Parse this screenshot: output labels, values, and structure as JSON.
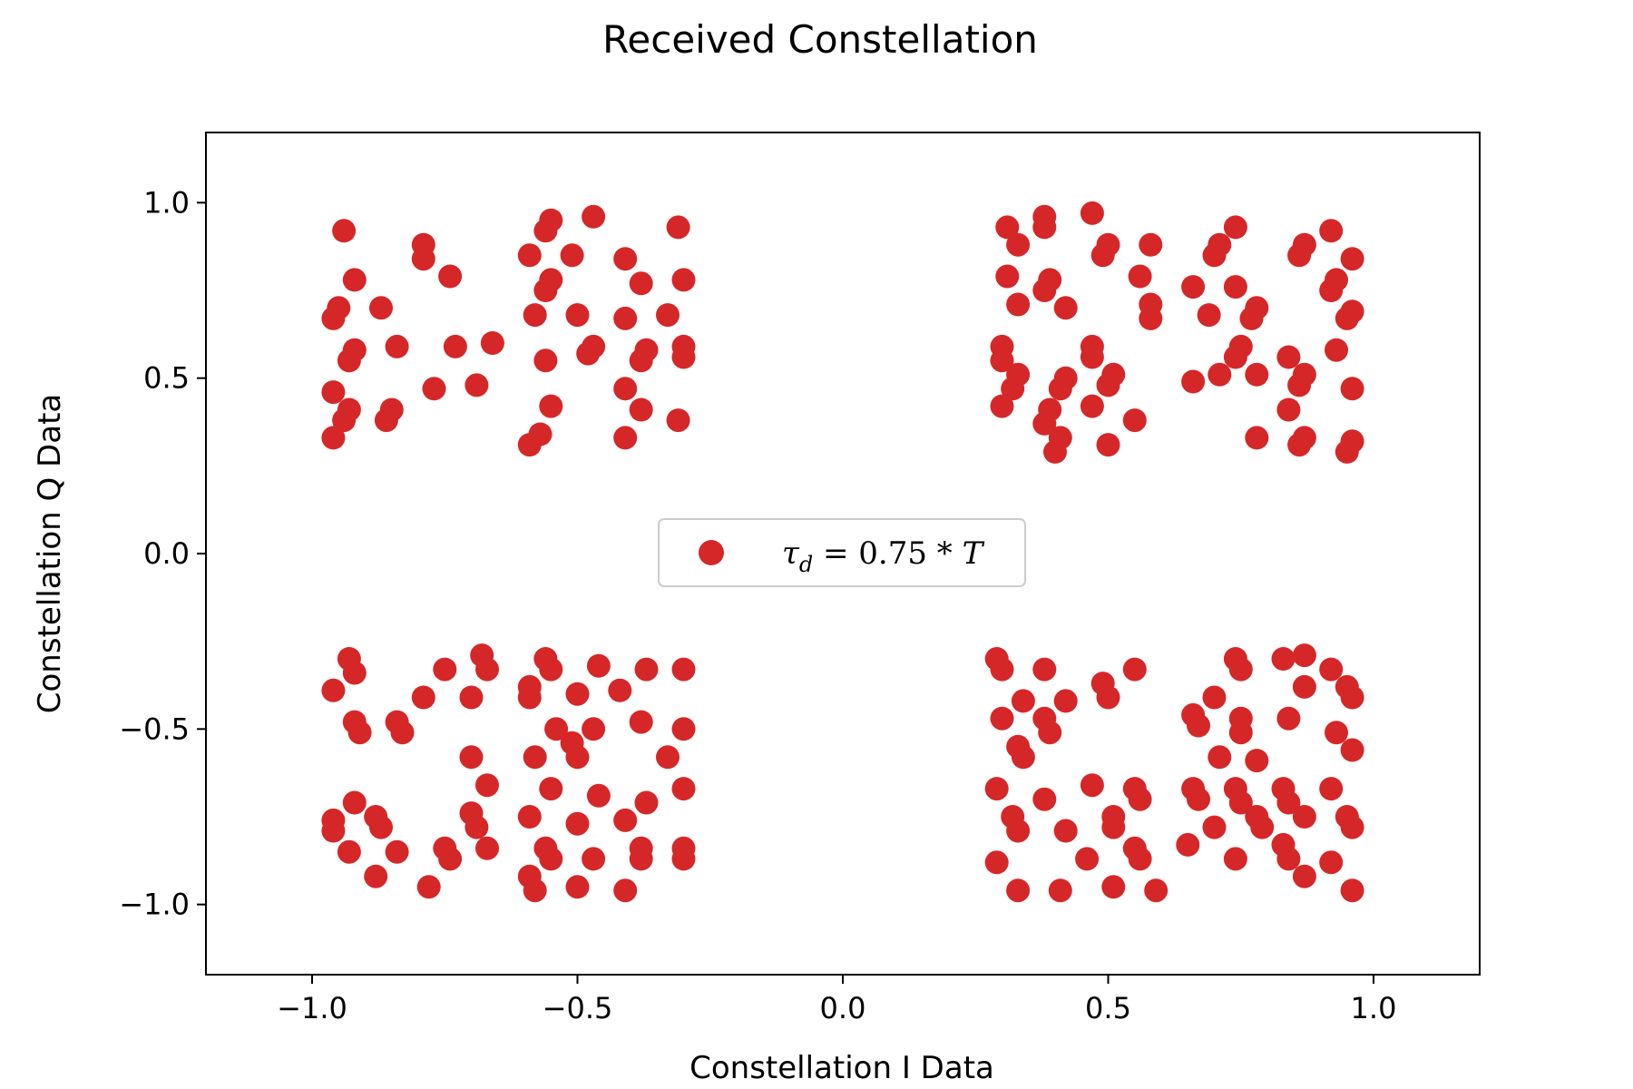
{
  "chart_data": {
    "type": "scatter",
    "title": "Received Constellation",
    "xlabel": "Constellation I Data",
    "ylabel": "Constellation Q Data",
    "xlim": [
      -1.2,
      1.2
    ],
    "ylim": [
      -1.2,
      1.2
    ],
    "xticks": [
      -1.0,
      -0.5,
      0.0,
      0.5,
      1.0
    ],
    "yticks": [
      -1.0,
      -0.5,
      0.0,
      0.5,
      1.0
    ],
    "xtick_labels": [
      "−1.0",
      "−0.5",
      "0.0",
      "0.5",
      "1.0"
    ],
    "ytick_labels": [
      "−1.0",
      "−0.5",
      "0.0",
      "0.5",
      "1.0"
    ],
    "grid": false,
    "legend_position": "center",
    "series": [
      {
        "legend_label": "τ_d = 0.75 * T",
        "color": "#d62728",
        "points": [
          [
            -0.94,
            0.92
          ],
          [
            -0.92,
            0.78
          ],
          [
            -0.95,
            0.7
          ],
          [
            -0.96,
            0.67
          ],
          [
            -0.87,
            0.7
          ],
          [
            -0.79,
            0.88
          ],
          [
            -0.79,
            0.84
          ],
          [
            -0.74,
            0.79
          ],
          [
            -0.92,
            0.58
          ],
          [
            -0.93,
            0.55
          ],
          [
            -0.84,
            0.59
          ],
          [
            -0.73,
            0.59
          ],
          [
            -0.66,
            0.6
          ],
          [
            -0.96,
            0.46
          ],
          [
            -0.77,
            0.47
          ],
          [
            -0.69,
            0.48
          ],
          [
            -0.93,
            0.41
          ],
          [
            -0.94,
            0.38
          ],
          [
            -0.85,
            0.41
          ],
          [
            -0.86,
            0.38
          ],
          [
            -0.96,
            0.33
          ],
          [
            -0.55,
            0.95
          ],
          [
            -0.56,
            0.92
          ],
          [
            -0.47,
            0.96
          ],
          [
            -0.59,
            0.85
          ],
          [
            -0.51,
            0.85
          ],
          [
            -0.41,
            0.84
          ],
          [
            -0.31,
            0.93
          ],
          [
            -0.55,
            0.78
          ],
          [
            -0.56,
            0.75
          ],
          [
            -0.38,
            0.77
          ],
          [
            -0.3,
            0.78
          ],
          [
            -0.58,
            0.68
          ],
          [
            -0.5,
            0.68
          ],
          [
            -0.41,
            0.67
          ],
          [
            -0.33,
            0.68
          ],
          [
            -0.47,
            0.59
          ],
          [
            -0.48,
            0.57
          ],
          [
            -0.37,
            0.58
          ],
          [
            -0.38,
            0.55
          ],
          [
            -0.3,
            0.59
          ],
          [
            -0.3,
            0.56
          ],
          [
            -0.56,
            0.55
          ],
          [
            -0.41,
            0.47
          ],
          [
            -0.55,
            0.42
          ],
          [
            -0.38,
            0.41
          ],
          [
            -0.31,
            0.38
          ],
          [
            -0.57,
            0.34
          ],
          [
            -0.59,
            0.31
          ],
          [
            -0.41,
            0.33
          ],
          [
            0.47,
            0.97
          ],
          [
            0.38,
            0.96
          ],
          [
            0.38,
            0.93
          ],
          [
            0.31,
            0.93
          ],
          [
            0.33,
            0.88
          ],
          [
            0.5,
            0.88
          ],
          [
            0.49,
            0.85
          ],
          [
            0.58,
            0.88
          ],
          [
            0.31,
            0.79
          ],
          [
            0.39,
            0.78
          ],
          [
            0.38,
            0.75
          ],
          [
            0.56,
            0.79
          ],
          [
            0.33,
            0.71
          ],
          [
            0.42,
            0.7
          ],
          [
            0.58,
            0.71
          ],
          [
            0.58,
            0.67
          ],
          [
            0.3,
            0.59
          ],
          [
            0.3,
            0.55
          ],
          [
            0.47,
            0.59
          ],
          [
            0.47,
            0.56
          ],
          [
            0.33,
            0.51
          ],
          [
            0.42,
            0.5
          ],
          [
            0.51,
            0.51
          ],
          [
            0.32,
            0.47
          ],
          [
            0.41,
            0.47
          ],
          [
            0.5,
            0.48
          ],
          [
            0.3,
            0.42
          ],
          [
            0.39,
            0.41
          ],
          [
            0.47,
            0.42
          ],
          [
            0.38,
            0.37
          ],
          [
            0.55,
            0.38
          ],
          [
            0.41,
            0.33
          ],
          [
            0.4,
            0.29
          ],
          [
            0.5,
            0.31
          ],
          [
            0.74,
            0.93
          ],
          [
            0.92,
            0.92
          ],
          [
            0.71,
            0.88
          ],
          [
            0.7,
            0.85
          ],
          [
            0.87,
            0.88
          ],
          [
            0.86,
            0.85
          ],
          [
            0.96,
            0.84
          ],
          [
            0.66,
            0.76
          ],
          [
            0.74,
            0.76
          ],
          [
            0.93,
            0.78
          ],
          [
            0.92,
            0.75
          ],
          [
            0.69,
            0.68
          ],
          [
            0.78,
            0.7
          ],
          [
            0.77,
            0.67
          ],
          [
            0.96,
            0.69
          ],
          [
            0.95,
            0.67
          ],
          [
            0.75,
            0.59
          ],
          [
            0.74,
            0.56
          ],
          [
            0.84,
            0.56
          ],
          [
            0.93,
            0.58
          ],
          [
            0.71,
            0.51
          ],
          [
            0.78,
            0.51
          ],
          [
            0.87,
            0.51
          ],
          [
            0.86,
            0.48
          ],
          [
            0.66,
            0.49
          ],
          [
            0.96,
            0.47
          ],
          [
            0.84,
            0.41
          ],
          [
            0.78,
            0.33
          ],
          [
            0.87,
            0.33
          ],
          [
            0.86,
            0.31
          ],
          [
            0.96,
            0.32
          ],
          [
            0.95,
            0.29
          ],
          [
            -0.93,
            -0.3
          ],
          [
            -0.92,
            -0.34
          ],
          [
            -0.96,
            -0.39
          ],
          [
            -0.75,
            -0.33
          ],
          [
            -0.68,
            -0.29
          ],
          [
            -0.67,
            -0.33
          ],
          [
            -0.79,
            -0.41
          ],
          [
            -0.7,
            -0.41
          ],
          [
            -0.92,
            -0.48
          ],
          [
            -0.91,
            -0.51
          ],
          [
            -0.84,
            -0.48
          ],
          [
            -0.83,
            -0.51
          ],
          [
            -0.7,
            -0.58
          ],
          [
            -0.67,
            -0.66
          ],
          [
            -0.92,
            -0.71
          ],
          [
            -0.88,
            -0.75
          ],
          [
            -0.96,
            -0.76
          ],
          [
            -0.96,
            -0.79
          ],
          [
            -0.87,
            -0.78
          ],
          [
            -0.7,
            -0.74
          ],
          [
            -0.69,
            -0.78
          ],
          [
            -0.75,
            -0.84
          ],
          [
            -0.74,
            -0.87
          ],
          [
            -0.67,
            -0.84
          ],
          [
            -0.93,
            -0.85
          ],
          [
            -0.84,
            -0.85
          ],
          [
            -0.88,
            -0.92
          ],
          [
            -0.78,
            -0.95
          ],
          [
            -0.56,
            -0.3
          ],
          [
            -0.55,
            -0.33
          ],
          [
            -0.46,
            -0.32
          ],
          [
            -0.37,
            -0.33
          ],
          [
            -0.3,
            -0.33
          ],
          [
            -0.59,
            -0.38
          ],
          [
            -0.59,
            -0.41
          ],
          [
            -0.5,
            -0.4
          ],
          [
            -0.42,
            -0.39
          ],
          [
            -0.54,
            -0.5
          ],
          [
            -0.47,
            -0.5
          ],
          [
            -0.38,
            -0.48
          ],
          [
            -0.3,
            -0.5
          ],
          [
            -0.51,
            -0.54
          ],
          [
            -0.5,
            -0.58
          ],
          [
            -0.58,
            -0.58
          ],
          [
            -0.33,
            -0.58
          ],
          [
            -0.55,
            -0.67
          ],
          [
            -0.46,
            -0.69
          ],
          [
            -0.3,
            -0.67
          ],
          [
            -0.37,
            -0.71
          ],
          [
            -0.59,
            -0.75
          ],
          [
            -0.5,
            -0.77
          ],
          [
            -0.41,
            -0.76
          ],
          [
            -0.56,
            -0.84
          ],
          [
            -0.55,
            -0.87
          ],
          [
            -0.47,
            -0.87
          ],
          [
            -0.38,
            -0.84
          ],
          [
            -0.38,
            -0.87
          ],
          [
            -0.3,
            -0.84
          ],
          [
            -0.3,
            -0.87
          ],
          [
            -0.59,
            -0.92
          ],
          [
            -0.58,
            -0.96
          ],
          [
            -0.5,
            -0.95
          ],
          [
            -0.41,
            -0.96
          ],
          [
            0.29,
            -0.3
          ],
          [
            0.3,
            -0.33
          ],
          [
            0.38,
            -0.33
          ],
          [
            0.49,
            -0.37
          ],
          [
            0.5,
            -0.41
          ],
          [
            0.55,
            -0.33
          ],
          [
            0.34,
            -0.42
          ],
          [
            0.42,
            -0.42
          ],
          [
            0.3,
            -0.47
          ],
          [
            0.38,
            -0.47
          ],
          [
            0.39,
            -0.51
          ],
          [
            0.33,
            -0.55
          ],
          [
            0.34,
            -0.58
          ],
          [
            0.29,
            -0.67
          ],
          [
            0.38,
            -0.7
          ],
          [
            0.47,
            -0.66
          ],
          [
            0.55,
            -0.67
          ],
          [
            0.56,
            -0.7
          ],
          [
            0.32,
            -0.75
          ],
          [
            0.33,
            -0.79
          ],
          [
            0.51,
            -0.75
          ],
          [
            0.51,
            -0.78
          ],
          [
            0.42,
            -0.79
          ],
          [
            0.29,
            -0.88
          ],
          [
            0.46,
            -0.87
          ],
          [
            0.55,
            -0.84
          ],
          [
            0.56,
            -0.87
          ],
          [
            0.33,
            -0.96
          ],
          [
            0.41,
            -0.96
          ],
          [
            0.51,
            -0.95
          ],
          [
            0.59,
            -0.96
          ],
          [
            0.74,
            -0.3
          ],
          [
            0.75,
            -0.33
          ],
          [
            0.83,
            -0.3
          ],
          [
            0.87,
            -0.29
          ],
          [
            0.92,
            -0.33
          ],
          [
            0.95,
            -0.38
          ],
          [
            0.96,
            -0.41
          ],
          [
            0.87,
            -0.38
          ],
          [
            0.7,
            -0.41
          ],
          [
            0.66,
            -0.46
          ],
          [
            0.67,
            -0.49
          ],
          [
            0.75,
            -0.47
          ],
          [
            0.75,
            -0.51
          ],
          [
            0.84,
            -0.47
          ],
          [
            0.93,
            -0.51
          ],
          [
            0.71,
            -0.58
          ],
          [
            0.78,
            -0.59
          ],
          [
            0.96,
            -0.56
          ],
          [
            0.66,
            -0.67
          ],
          [
            0.67,
            -0.7
          ],
          [
            0.74,
            -0.67
          ],
          [
            0.75,
            -0.71
          ],
          [
            0.83,
            -0.67
          ],
          [
            0.84,
            -0.71
          ],
          [
            0.92,
            -0.67
          ],
          [
            0.78,
            -0.75
          ],
          [
            0.79,
            -0.78
          ],
          [
            0.7,
            -0.78
          ],
          [
            0.87,
            -0.75
          ],
          [
            0.95,
            -0.75
          ],
          [
            0.96,
            -0.78
          ],
          [
            0.65,
            -0.83
          ],
          [
            0.74,
            -0.87
          ],
          [
            0.83,
            -0.83
          ],
          [
            0.84,
            -0.87
          ],
          [
            0.92,
            -0.88
          ],
          [
            0.87,
            -0.92
          ],
          [
            0.96,
            -0.96
          ]
        ]
      }
    ]
  }
}
